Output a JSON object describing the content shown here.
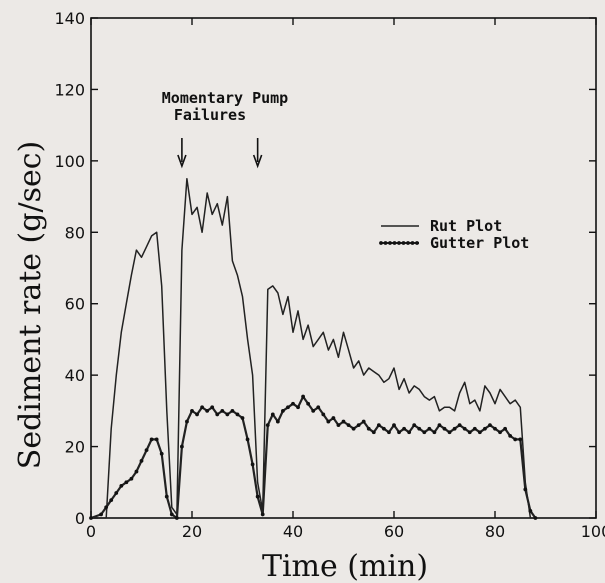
{
  "chart_data": {
    "type": "line",
    "xlabel": "Time (min)",
    "ylabel": "Sediment rate (g/sec)",
    "xlim": [
      0,
      100
    ],
    "ylim": [
      0,
      140
    ],
    "xticks": [
      0,
      20,
      40,
      60,
      80,
      100
    ],
    "yticks": [
      0,
      20,
      40,
      60,
      80,
      100,
      120,
      140
    ],
    "legend_position": "right",
    "annotation": {
      "lines": [
        "Momentary Pump",
        "Failures"
      ],
      "arrows_at_x": [
        18,
        33
      ]
    },
    "series": [
      {
        "name": "Rut Plot",
        "style": "line",
        "points": [
          [
            0,
            0
          ],
          [
            3,
            0
          ],
          [
            4,
            25
          ],
          [
            5,
            40
          ],
          [
            6,
            52
          ],
          [
            7,
            60
          ],
          [
            8,
            68
          ],
          [
            9,
            75
          ],
          [
            10,
            73
          ],
          [
            11,
            76
          ],
          [
            12,
            79
          ],
          [
            13,
            80
          ],
          [
            14,
            65
          ],
          [
            15,
            30
          ],
          [
            16,
            3
          ],
          [
            17,
            1
          ],
          [
            18,
            75
          ],
          [
            19,
            95
          ],
          [
            20,
            85
          ],
          [
            21,
            87
          ],
          [
            22,
            80
          ],
          [
            23,
            91
          ],
          [
            24,
            85
          ],
          [
            25,
            88
          ],
          [
            26,
            82
          ],
          [
            27,
            90
          ],
          [
            28,
            72
          ],
          [
            29,
            68
          ],
          [
            30,
            62
          ],
          [
            31,
            50
          ],
          [
            32,
            40
          ],
          [
            33,
            10
          ],
          [
            34,
            2
          ],
          [
            35,
            64
          ],
          [
            36,
            65
          ],
          [
            37,
            63
          ],
          [
            38,
            57
          ],
          [
            39,
            62
          ],
          [
            40,
            52
          ],
          [
            41,
            58
          ],
          [
            42,
            50
          ],
          [
            43,
            54
          ],
          [
            44,
            48
          ],
          [
            45,
            50
          ],
          [
            46,
            52
          ],
          [
            47,
            47
          ],
          [
            48,
            50
          ],
          [
            49,
            45
          ],
          [
            50,
            52
          ],
          [
            51,
            47
          ],
          [
            52,
            42
          ],
          [
            53,
            44
          ],
          [
            54,
            40
          ],
          [
            55,
            42
          ],
          [
            56,
            41
          ],
          [
            57,
            40
          ],
          [
            58,
            38
          ],
          [
            59,
            39
          ],
          [
            60,
            42
          ],
          [
            61,
            36
          ],
          [
            62,
            39
          ],
          [
            63,
            35
          ],
          [
            64,
            37
          ],
          [
            65,
            36
          ],
          [
            66,
            34
          ],
          [
            67,
            33
          ],
          [
            68,
            34
          ],
          [
            69,
            30
          ],
          [
            70,
            31
          ],
          [
            71,
            31
          ],
          [
            72,
            30
          ],
          [
            73,
            35
          ],
          [
            74,
            38
          ],
          [
            75,
            32
          ],
          [
            76,
            33
          ],
          [
            77,
            30
          ],
          [
            78,
            37
          ],
          [
            79,
            35
          ],
          [
            80,
            32
          ],
          [
            81,
            36
          ],
          [
            82,
            34
          ],
          [
            83,
            32
          ],
          [
            84,
            33
          ],
          [
            85,
            31
          ],
          [
            86,
            10
          ],
          [
            87,
            0
          ],
          [
            88,
            0
          ]
        ]
      },
      {
        "name": "Gutter Plot",
        "style": "dotted-line",
        "points": [
          [
            0,
            0
          ],
          [
            2,
            1
          ],
          [
            3,
            3
          ],
          [
            4,
            5
          ],
          [
            5,
            7
          ],
          [
            6,
            9
          ],
          [
            7,
            10
          ],
          [
            8,
            11
          ],
          [
            9,
            13
          ],
          [
            10,
            16
          ],
          [
            11,
            19
          ],
          [
            12,
            22
          ],
          [
            13,
            22
          ],
          [
            14,
            18
          ],
          [
            15,
            6
          ],
          [
            16,
            1
          ],
          [
            17,
            0
          ],
          [
            18,
            20
          ],
          [
            19,
            27
          ],
          [
            20,
            30
          ],
          [
            21,
            29
          ],
          [
            22,
            31
          ],
          [
            23,
            30
          ],
          [
            24,
            31
          ],
          [
            25,
            29
          ],
          [
            26,
            30
          ],
          [
            27,
            29
          ],
          [
            28,
            30
          ],
          [
            29,
            29
          ],
          [
            30,
            28
          ],
          [
            31,
            22
          ],
          [
            32,
            15
          ],
          [
            33,
            6
          ],
          [
            34,
            1
          ],
          [
            35,
            26
          ],
          [
            36,
            29
          ],
          [
            37,
            27
          ],
          [
            38,
            30
          ],
          [
            39,
            31
          ],
          [
            40,
            32
          ],
          [
            41,
            31
          ],
          [
            42,
            34
          ],
          [
            43,
            32
          ],
          [
            44,
            30
          ],
          [
            45,
            31
          ],
          [
            46,
            29
          ],
          [
            47,
            27
          ],
          [
            48,
            28
          ],
          [
            49,
            26
          ],
          [
            50,
            27
          ],
          [
            51,
            26
          ],
          [
            52,
            25
          ],
          [
            53,
            26
          ],
          [
            54,
            27
          ],
          [
            55,
            25
          ],
          [
            56,
            24
          ],
          [
            57,
            26
          ],
          [
            58,
            25
          ],
          [
            59,
            24
          ],
          [
            60,
            26
          ],
          [
            61,
            24
          ],
          [
            62,
            25
          ],
          [
            63,
            24
          ],
          [
            64,
            26
          ],
          [
            65,
            25
          ],
          [
            66,
            24
          ],
          [
            67,
            25
          ],
          [
            68,
            24
          ],
          [
            69,
            26
          ],
          [
            70,
            25
          ],
          [
            71,
            24
          ],
          [
            72,
            25
          ],
          [
            73,
            26
          ],
          [
            74,
            25
          ],
          [
            75,
            24
          ],
          [
            76,
            25
          ],
          [
            77,
            24
          ],
          [
            78,
            25
          ],
          [
            79,
            26
          ],
          [
            80,
            25
          ],
          [
            81,
            24
          ],
          [
            82,
            25
          ],
          [
            83,
            23
          ],
          [
            84,
            22
          ],
          [
            85,
            22
          ],
          [
            86,
            8
          ],
          [
            87,
            2
          ],
          [
            88,
            0
          ]
        ]
      }
    ]
  }
}
